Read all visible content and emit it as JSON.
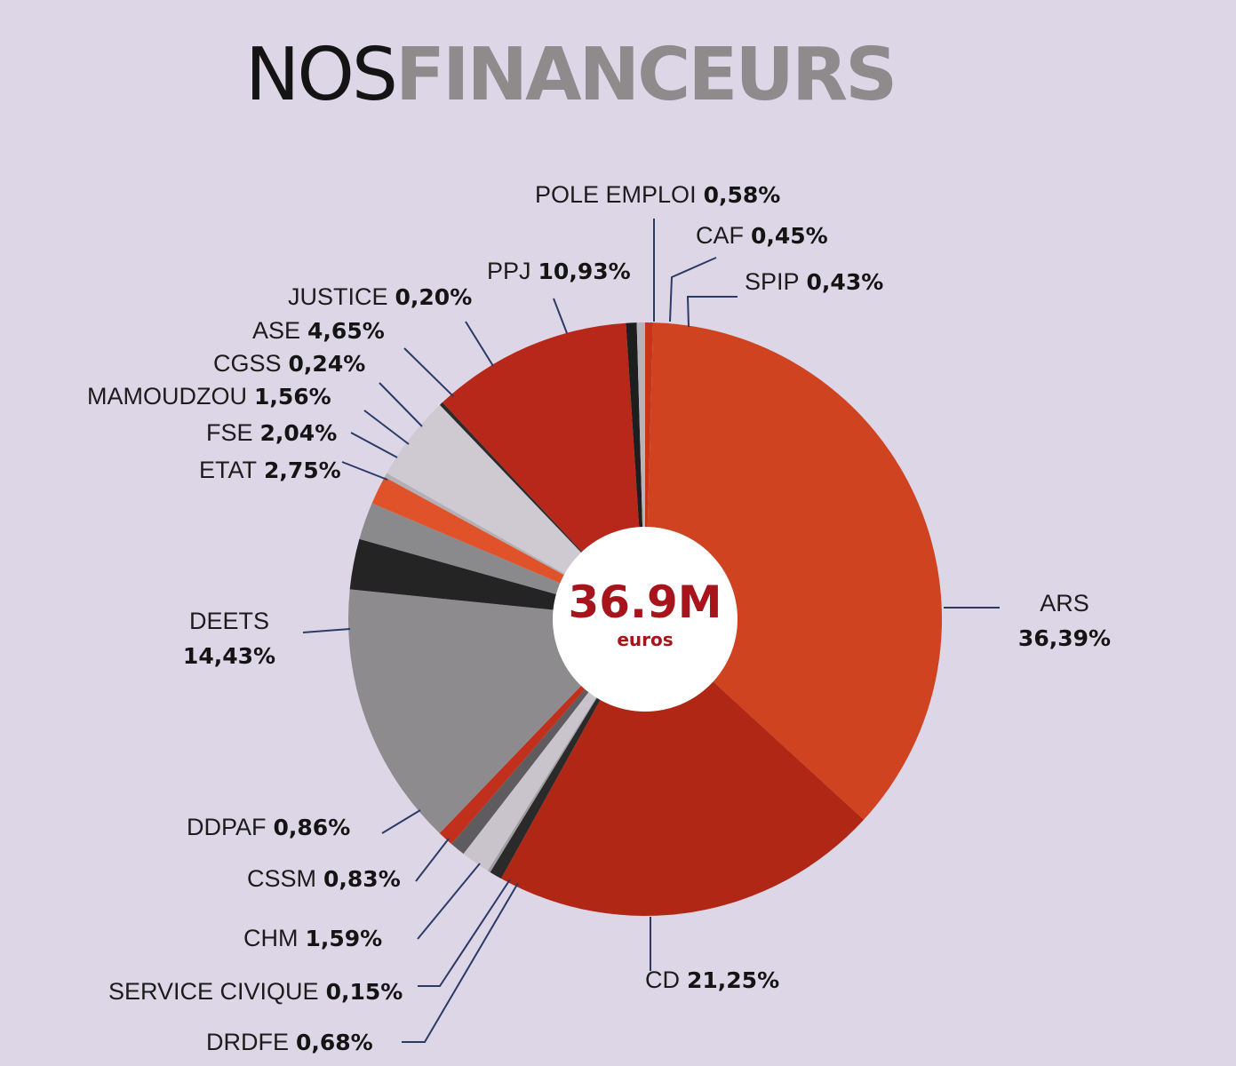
{
  "title": {
    "part1": "NOS",
    "part2": "FINANCEURS"
  },
  "center": {
    "value": "36.9M",
    "unit": "euros",
    "color": "#a8141c"
  },
  "chart_data": {
    "type": "pie",
    "title": "NOSFINANCEURS",
    "total_label": "36.9M",
    "total_unit": "euros",
    "start": "top, clockwise",
    "slices": [
      {
        "name": "SPIP",
        "value": 0.43,
        "label": "0,43%",
        "color": "#c8341a"
      },
      {
        "name": "ARS",
        "value": 36.39,
        "label": "36,39%",
        "color": "#cf4320"
      },
      {
        "name": "CD",
        "value": 21.25,
        "label": "21,25%",
        "color": "#b12716"
      },
      {
        "name": "DRDFE",
        "value": 0.68,
        "label": "0,68%",
        "color": "#2a2a2a"
      },
      {
        "name": "SERVICE CIVIQUE",
        "value": 0.15,
        "label": "0,15%",
        "color": "#9e9ea2"
      },
      {
        "name": "CHM",
        "value": 1.59,
        "label": "1,59%",
        "color": "#c9c3cb"
      },
      {
        "name": "CSSM",
        "value": 0.83,
        "label": "0,83%",
        "color": "#5e5c5e"
      },
      {
        "name": "DDPAF",
        "value": 0.86,
        "label": "0,86%",
        "color": "#c0301c"
      },
      {
        "name": "DEETS",
        "value": 14.43,
        "label": "14,43%",
        "color": "#8d8b8d"
      },
      {
        "name": "ETAT",
        "value": 2.75,
        "label": "2,75%",
        "color": "#242424"
      },
      {
        "name": "FSE",
        "value": 2.04,
        "label": "2,04%",
        "color": "#8a8a8c"
      },
      {
        "name": "MAMOUDZOU",
        "value": 1.56,
        "label": "1,56%",
        "color": "#e0532a"
      },
      {
        "name": "CGSS",
        "value": 0.24,
        "label": "0,24%",
        "color": "#b3b0b5"
      },
      {
        "name": "ASE",
        "value": 4.65,
        "label": "4,65%",
        "color": "#cfc9d2"
      },
      {
        "name": "JUSTICE",
        "value": 0.2,
        "label": "0,20%",
        "color": "#2b2b2b"
      },
      {
        "name": "PPJ",
        "value": 10.93,
        "label": "10,93%",
        "color": "#b8281a"
      },
      {
        "name": "POLE EMPLOI",
        "value": 0.58,
        "label": "0,58%",
        "color": "#1e1e1e"
      },
      {
        "name": "CAF",
        "value": 0.45,
        "label": "0,45%",
        "color": "#b7b3bc"
      }
    ]
  }
}
